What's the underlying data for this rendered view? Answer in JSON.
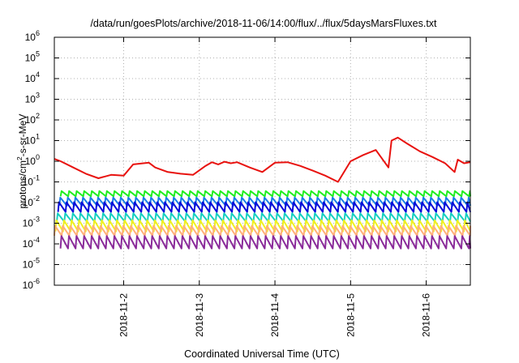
{
  "chart_data": {
    "type": "line",
    "title": "/data/run/goesPlots/archive/2018-11-06/14:00/flux/../flux/5daysMarsFluxes.txt",
    "xlabel": "Coordinated Universal Time (UTC)",
    "ylabel_parts": [
      "protons/cm",
      "2",
      "-s-sr-MeV"
    ],
    "y_scale": "log",
    "ylim": [
      1e-06,
      1000000.0
    ],
    "xlim": [
      "2018-11-01T02:00",
      "2018-11-06T14:00"
    ],
    "grid": true,
    "y_ticks": [
      {
        "value": 1e-06,
        "base": "10",
        "exp": "-6"
      },
      {
        "value": 1e-05,
        "base": "10",
        "exp": "-5"
      },
      {
        "value": 0.0001,
        "base": "10",
        "exp": "-4"
      },
      {
        "value": 0.001,
        "base": "10",
        "exp": "-3"
      },
      {
        "value": 0.01,
        "base": "10",
        "exp": "-2"
      },
      {
        "value": 0.1,
        "base": "10",
        "exp": "-1"
      },
      {
        "value": 1,
        "base": "10",
        "exp": "0"
      },
      {
        "value": 10,
        "base": "10",
        "exp": "1"
      },
      {
        "value": 100,
        "base": "10",
        "exp": "2"
      },
      {
        "value": 1000,
        "base": "10",
        "exp": "3"
      },
      {
        "value": 10000,
        "base": "10",
        "exp": "4"
      },
      {
        "value": 100000,
        "base": "10",
        "exp": "5"
      },
      {
        "value": 1000000,
        "base": "10",
        "exp": "6"
      }
    ],
    "x_ticks": [
      "2018-11-2",
      "2018-11-3",
      "2018-11-4",
      "2018-11-5",
      "2018-11-6"
    ],
    "x_tick_dates": [
      "2018-11-02T00:00",
      "2018-11-03T00:00",
      "2018-11-04T00:00",
      "2018-11-05T00:00",
      "2018-11-06T00:00"
    ],
    "series": [
      {
        "color": "#e8120f",
        "x": [
          "2018-11-01T02:00",
          "2018-11-01T04:00",
          "2018-11-01T08:00",
          "2018-11-01T12:00",
          "2018-11-01T16:00",
          "2018-11-01T20:00",
          "2018-11-02T00:00",
          "2018-11-02T03:00",
          "2018-11-02T08:00",
          "2018-11-02T10:00",
          "2018-11-02T14:00",
          "2018-11-02T18:00",
          "2018-11-02T22:00",
          "2018-11-03T02:00",
          "2018-11-03T04:00",
          "2018-11-03T06:00",
          "2018-11-03T08:00",
          "2018-11-03T10:00",
          "2018-11-03T12:00",
          "2018-11-03T16:00",
          "2018-11-03T20:00",
          "2018-11-04T00:00",
          "2018-11-04T04:00",
          "2018-11-04T08:00",
          "2018-11-04T12:00",
          "2018-11-04T16:00",
          "2018-11-04T20:00",
          "2018-11-05T00:00",
          "2018-11-05T04:00",
          "2018-11-05T08:00",
          "2018-11-05T12:00",
          "2018-11-05T13:00",
          "2018-11-05T15:00",
          "2018-11-05T18:00",
          "2018-11-05T22:00",
          "2018-11-06T02:00",
          "2018-11-06T06:00",
          "2018-11-06T09:00",
          "2018-11-06T10:00",
          "2018-11-06T12:00",
          "2018-11-06T14:00"
        ],
        "y": [
          1.3,
          1.0,
          0.5,
          0.25,
          0.15,
          0.22,
          0.2,
          0.7,
          0.85,
          0.5,
          0.3,
          0.25,
          0.22,
          0.6,
          0.9,
          0.7,
          0.95,
          0.8,
          0.9,
          0.5,
          0.3,
          0.85,
          0.9,
          0.6,
          0.35,
          0.2,
          0.1,
          1.0,
          2.0,
          3.5,
          0.5,
          10.0,
          14.0,
          7.0,
          3.0,
          1.6,
          0.8,
          0.3,
          1.2,
          0.8,
          0.9
        ]
      },
      {
        "color": "#22ee22",
        "base": 0.02,
        "amp": 1.8
      },
      {
        "color": "#1a7fe8",
        "base": 0.007,
        "amp": 2.5
      },
      {
        "color": "#0a0ad8",
        "base": 0.0035,
        "amp": 3.0
      },
      {
        "color": "#17d0c0",
        "base": 0.0012,
        "amp": 2.5
      },
      {
        "color": "#f0f020",
        "base": 0.0004,
        "amp": 3.5
      },
      {
        "color": "#ffb07a",
        "base": 0.00025,
        "amp": 3.0
      },
      {
        "color": "#8a2a9a",
        "base": 6e-05,
        "amp": 4.0
      }
    ]
  }
}
